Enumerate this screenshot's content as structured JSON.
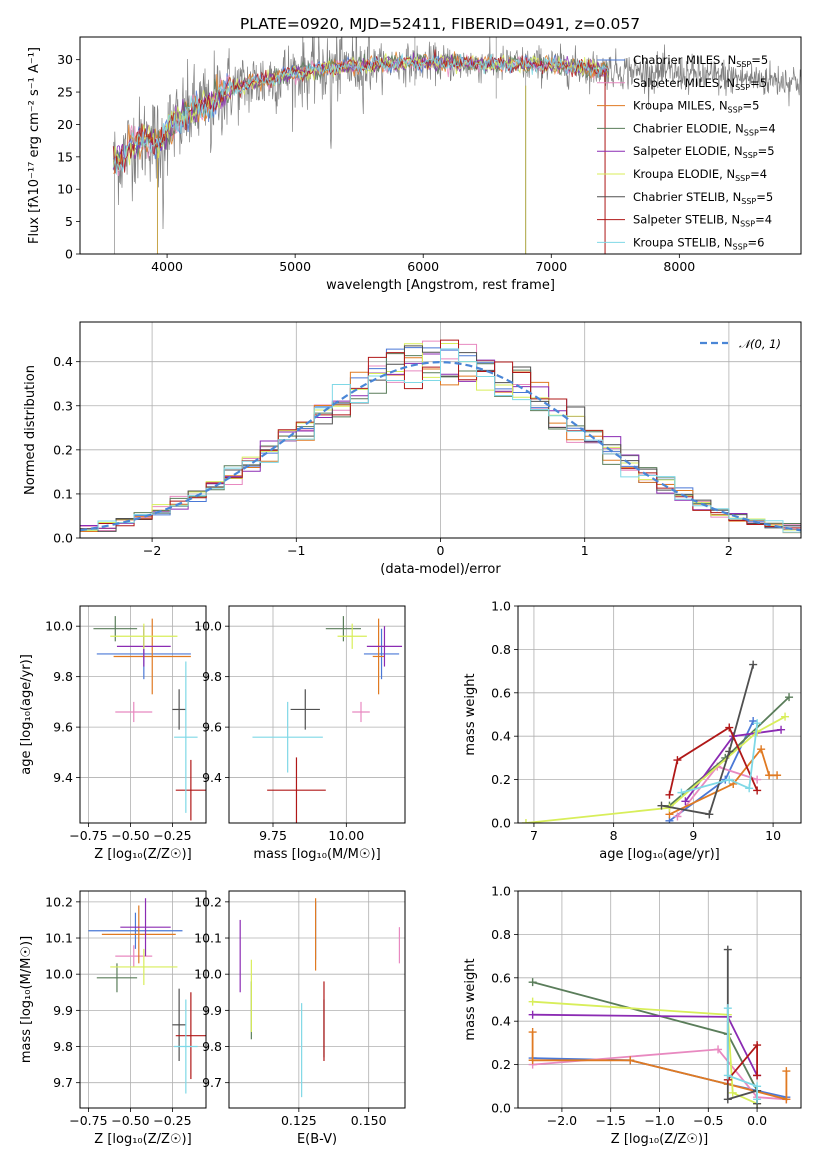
{
  "figure": {
    "title": "PLATE=0920, MJD=52411, FIBERID=0491, z=0.057"
  },
  "models": [
    {
      "name": "Chabrier MILES",
      "nssp": "5",
      "color": "#4a78d6"
    },
    {
      "name": "Salpeter MILES",
      "nssp": "5",
      "color": "#e889c0"
    },
    {
      "name": "Kroupa MILES",
      "nssp": "5",
      "color": "#e07a22"
    },
    {
      "name": "Chabrier ELODIE",
      "nssp": "4",
      "color": "#5a7d5a"
    },
    {
      "name": "Salpeter ELODIE",
      "nssp": "5",
      "color": "#8b2bb3"
    },
    {
      "name": "Kroupa ELODIE",
      "nssp": "4",
      "color": "#d8ee5a"
    },
    {
      "name": "Chabrier STELIB",
      "nssp": "5",
      "color": "#505050"
    },
    {
      "name": "Salpeter STELIB",
      "nssp": "4",
      "color": "#b01818"
    },
    {
      "name": "Kroupa STELIB",
      "nssp": "6",
      "color": "#7fd8e6"
    }
  ],
  "chart_data": [
    {
      "id": "spectrum",
      "type": "line",
      "title": "PLATE=0920, MJD=52411, FIBERID=0491, z=0.057",
      "xlabel": "wavelength [Angstrom, rest frame]",
      "ylabel": "Flux [fλ10⁻¹⁷ erg cm⁻² s⁻¹ A⁻¹]",
      "xlim": [
        3320,
        8950
      ],
      "ylim": [
        0,
        33.5
      ],
      "xticks": [
        4000,
        5000,
        6000,
        7000,
        8000
      ],
      "yticks": [
        0,
        5,
        10,
        15,
        20,
        25,
        30
      ],
      "x": [
        3580,
        3650,
        3720,
        3800,
        3880,
        3950,
        4000,
        4100,
        4200,
        4300,
        4400,
        4500,
        4600,
        4700,
        4800,
        4900,
        5000,
        5200,
        5400,
        5600,
        5800,
        6000,
        6200,
        6400,
        6600,
        6800,
        7000,
        7200,
        7400,
        7600,
        7800,
        8000,
        8200,
        8400,
        8600,
        8800
      ],
      "y": [
        14,
        15,
        17,
        17.5,
        18,
        17,
        19,
        21,
        22,
        23,
        24.5,
        25.5,
        26,
        26.5,
        27,
        27.5,
        28,
        28.5,
        29,
        29.2,
        29.4,
        29.5,
        29.5,
        29.3,
        29.2,
        29.3,
        29.2,
        28.8,
        28.5,
        28.3,
        28,
        27.8,
        27.5,
        27.3,
        27,
        26.8
      ],
      "legend_position": "right",
      "grid": false
    },
    {
      "id": "residuals",
      "type": "histogram",
      "xlabel": "(data-model)/error",
      "ylabel": "Normed distribution",
      "xlim": [
        -2.5,
        2.5
      ],
      "ylim": [
        0,
        0.49
      ],
      "xticks": [
        -2,
        -1,
        0,
        1,
        2
      ],
      "xtick_labels": [
        "−2",
        "−1",
        "0",
        "1",
        "2"
      ],
      "yticks": [
        0.0,
        0.1,
        0.2,
        0.3,
        0.4
      ],
      "yticks_labels": [
        "0.0",
        "0.1",
        "0.2",
        "0.3",
        "0.4"
      ],
      "bin_width": 0.125,
      "reference_label": "𝒩(0, 1)",
      "reference_color": "#4a86d6",
      "grid": true
    },
    {
      "id": "age-vs-Z",
      "type": "errorbar",
      "xlabel": "Z [log₁₀(Z/Z☉)]",
      "ylabel": "age  [log₁₀(age/yr)]",
      "xlim": [
        -0.8,
        -0.05
      ],
      "ylim": [
        9.22,
        10.08
      ],
      "xticks": [
        -0.75,
        -0.5,
        -0.25
      ],
      "xtick_labels": [
        "−0.75",
        "−0.50",
        "−0.25"
      ],
      "yticks": [
        9.4,
        9.6,
        9.8,
        10.0
      ],
      "yticks_labels": [
        "9.4",
        "9.6",
        "9.8",
        "10.0"
      ],
      "points": [
        {
          "x": -0.42,
          "y": 9.89,
          "xerr": 0.28,
          "yerr": 0.1
        },
        {
          "x": -0.48,
          "y": 9.66,
          "xerr": 0.11,
          "yerr": 0.04
        },
        {
          "x": -0.37,
          "y": 9.88,
          "xerr": 0.23,
          "yerr": 0.15
        },
        {
          "x": -0.59,
          "y": 9.99,
          "xerr": 0.13,
          "yerr": 0.05
        },
        {
          "x": -0.42,
          "y": 9.92,
          "xerr": 0.16,
          "yerr": 0.08
        },
        {
          "x": -0.42,
          "y": 9.96,
          "xerr": 0.2,
          "yerr": 0.05
        },
        {
          "x": -0.21,
          "y": 9.67,
          "xerr": 0.04,
          "yerr": 0.08
        },
        {
          "x": -0.14,
          "y": 9.35,
          "xerr": 0.09,
          "yerr": 0.12
        },
        {
          "x": -0.17,
          "y": 9.56,
          "xerr": 0.07,
          "yerr": 0.3
        }
      ],
      "grid": true
    },
    {
      "id": "age-vs-mass",
      "type": "errorbar",
      "xlabel": "mass [log₁₀(M/M☉)]",
      "ylabel": "",
      "xlim": [
        9.6,
        10.2
      ],
      "ylim": [
        9.22,
        10.08
      ],
      "xticks": [
        9.75,
        10.0
      ],
      "xtick_labels": [
        "9.75",
        "10.00"
      ],
      "yticks": [
        9.4,
        9.6,
        9.8,
        10.0
      ],
      "yticks_labels": [
        "9.4",
        "9.6",
        "9.8",
        "10.0"
      ],
      "points": [
        {
          "x": 10.12,
          "y": 9.89,
          "xerr": 0.06,
          "yerr": 0.1
        },
        {
          "x": 10.05,
          "y": 9.66,
          "xerr": 0.03,
          "yerr": 0.04
        },
        {
          "x": 10.11,
          "y": 9.88,
          "xerr": 0.02,
          "yerr": 0.15
        },
        {
          "x": 9.99,
          "y": 9.99,
          "xerr": 0.06,
          "yerr": 0.05
        },
        {
          "x": 10.13,
          "y": 9.92,
          "xerr": 0.06,
          "yerr": 0.08
        },
        {
          "x": 10.02,
          "y": 9.96,
          "xerr": 0.05,
          "yerr": 0.05
        },
        {
          "x": 9.86,
          "y": 9.67,
          "xerr": 0.05,
          "yerr": 0.08
        },
        {
          "x": 9.83,
          "y": 9.35,
          "xerr": 0.1,
          "yerr": 0.13
        },
        {
          "x": 9.8,
          "y": 9.56,
          "xerr": 0.12,
          "yerr": 0.14
        }
      ],
      "grid": true
    },
    {
      "id": "sfh-age",
      "type": "line",
      "xlabel": "age  [log₁₀(age/yr)]",
      "ylabel": "mass weight",
      "xlim": [
        6.8,
        10.35
      ],
      "ylim": [
        0,
        1
      ],
      "xticks": [
        7,
        8,
        9,
        10
      ],
      "yticks": [
        0.0,
        0.2,
        0.4,
        0.6,
        0.8,
        1.0
      ],
      "yticks_labels": [
        "0.0",
        "0.2",
        "0.4",
        "0.6",
        "0.8",
        "1.0"
      ],
      "series": [
        {
          "x": [
            8.7,
            9.4,
            9.75
          ],
          "y": [
            0.01,
            0.2,
            0.47
          ]
        },
        {
          "x": [
            8.8,
            9.3,
            9.8
          ],
          "y": [
            0.03,
            0.26,
            0.2
          ]
        },
        {
          "x": [
            8.7,
            9.5,
            9.85,
            9.95,
            10.05
          ],
          "y": [
            0.04,
            0.18,
            0.34,
            0.22,
            0.22
          ]
        },
        {
          "x": [
            8.7,
            9.4,
            10.2
          ],
          "y": [
            0.08,
            0.3,
            0.58
          ]
        },
        {
          "x": [
            8.9,
            9.5,
            10.1
          ],
          "y": [
            0.1,
            0.4,
            0.43
          ]
        },
        {
          "x": [
            6.9,
            8.7,
            9.8,
            10.15
          ],
          "y": [
            0.0,
            0.07,
            0.42,
            0.49
          ]
        },
        {
          "x": [
            8.6,
            9.2,
            9.45,
            9.75
          ],
          "y": [
            0.08,
            0.04,
            0.33,
            0.73
          ]
        },
        {
          "x": [
            8.7,
            8.8,
            9.45,
            9.8
          ],
          "y": [
            0.13,
            0.29,
            0.44,
            0.15
          ]
        },
        {
          "x": [
            8.85,
            9.45,
            9.7,
            9.8
          ],
          "y": [
            0.14,
            0.2,
            0.16,
            0.46
          ]
        }
      ],
      "grid": true
    },
    {
      "id": "mass-vs-Z",
      "type": "errorbar",
      "xlabel": "Z [log₁₀(Z/Z☉)]",
      "ylabel": "mass [log₁₀(M/M☉)]",
      "xlim": [
        -0.8,
        -0.05
      ],
      "ylim": [
        9.63,
        10.23
      ],
      "xticks": [
        -0.75,
        -0.5,
        -0.25
      ],
      "xtick_labels": [
        "−0.75",
        "−0.50",
        "−0.25"
      ],
      "yticks": [
        9.7,
        9.8,
        9.9,
        10.0,
        10.1,
        10.2
      ],
      "yticks_labels": [
        "9.7",
        "9.8",
        "9.9",
        "10.0",
        "10.1",
        "10.2"
      ],
      "points": [
        {
          "x": -0.47,
          "y": 10.12,
          "xerr": 0.28,
          "yerr": 0.05
        },
        {
          "x": -0.48,
          "y": 10.05,
          "xerr": 0.11,
          "yerr": 0.03
        },
        {
          "x": -0.45,
          "y": 10.11,
          "xerr": 0.22,
          "yerr": 0.08
        },
        {
          "x": -0.58,
          "y": 9.99,
          "xerr": 0.12,
          "yerr": 0.04
        },
        {
          "x": -0.41,
          "y": 10.13,
          "xerr": 0.15,
          "yerr": 0.08
        },
        {
          "x": -0.42,
          "y": 10.02,
          "xerr": 0.2,
          "yerr": 0.05
        },
        {
          "x": -0.21,
          "y": 9.86,
          "xerr": 0.04,
          "yerr": 0.1
        },
        {
          "x": -0.14,
          "y": 9.83,
          "xerr": 0.09,
          "yerr": 0.12
        },
        {
          "x": -0.17,
          "y": 9.8,
          "xerr": 0.07,
          "yerr": 0.13
        }
      ],
      "grid": true
    },
    {
      "id": "mass-vs-ebv",
      "type": "errorbar",
      "xlabel": "E(B-V)",
      "ylabel": "",
      "xlim": [
        0.1,
        0.163
      ],
      "ylim": [
        9.63,
        10.23
      ],
      "xticks": [
        0.125,
        0.15
      ],
      "xtick_labels": [
        "0.125",
        "0.150"
      ],
      "yticks": [
        9.7,
        9.8,
        9.9,
        10.0,
        10.1,
        10.2
      ],
      "yticks_labels": [
        "9.7",
        "9.8",
        "9.9",
        "10.0",
        "10.1",
        "10.2"
      ],
      "points": [
        {
          "x": 0.131,
          "y": 10.12,
          "xerr": 0,
          "yerr": 0.08
        },
        {
          "x": 0.161,
          "y": 10.08,
          "xerr": 0,
          "yerr": 0.05
        },
        {
          "x": 0.131,
          "y": 10.11,
          "xerr": 0,
          "yerr": 0.1
        },
        {
          "x": 0.108,
          "y": 9.9,
          "xerr": 0,
          "yerr": 0.08
        },
        {
          "x": 0.104,
          "y": 10.05,
          "xerr": 0,
          "yerr": 0.1
        },
        {
          "x": 0.108,
          "y": 9.94,
          "xerr": 0,
          "yerr": 0.1
        },
        {
          "x": 0.134,
          "y": 9.85,
          "xerr": 0,
          "yerr": 0.08
        },
        {
          "x": 0.134,
          "y": 9.87,
          "xerr": 0,
          "yerr": 0.11
        },
        {
          "x": 0.126,
          "y": 9.79,
          "xerr": 0,
          "yerr": 0.13
        }
      ],
      "grid": true
    },
    {
      "id": "sfh-Z",
      "type": "line",
      "xlabel": "Z [log₁₀(Z/Z☉)]",
      "ylabel": "mass weight",
      "xlim": [
        -2.45,
        0.45
      ],
      "ylim": [
        0,
        1
      ],
      "xticks": [
        -2.0,
        -1.5,
        -1.0,
        -0.5,
        0.0
      ],
      "xtick_labels": [
        "−2.0",
        "−1.5",
        "−1.0",
        "−0.5",
        "0.0"
      ],
      "yticks": [
        0.0,
        0.2,
        0.4,
        0.6,
        0.8,
        1.0
      ],
      "yticks_labels": [
        "0.0",
        "0.2",
        "0.4",
        "0.6",
        "0.8",
        "1.0"
      ],
      "series": [
        {
          "x": [
            -2.3,
            -1.3,
            -0.3,
            0.3
          ],
          "y": [
            0.23,
            0.22,
            0.11,
            0.05
          ]
        },
        {
          "x": [
            -2.3,
            -0.4,
            0.0,
            0.3
          ],
          "y": [
            0.2,
            0.27,
            0.05,
            0.04
          ]
        },
        {
          "x": [
            -2.3,
            -2.3,
            -1.3,
            -0.3,
            0.3,
            0.3
          ],
          "y": [
            0.35,
            0.22,
            0.22,
            0.11,
            0.04,
            0.17
          ]
        },
        {
          "x": [
            -2.3,
            -0.3,
            0.0
          ],
          "y": [
            0.58,
            0.34,
            0.08
          ]
        },
        {
          "x": [
            -2.3,
            -0.3,
            0.0
          ],
          "y": [
            0.43,
            0.42,
            0.15
          ]
        },
        {
          "x": [
            -2.3,
            -0.3,
            -0.25,
            0.0
          ],
          "y": [
            0.49,
            0.43,
            0.07,
            0.02
          ]
        },
        {
          "x": [
            -0.3,
            -0.3,
            0.0,
            0.0
          ],
          "y": [
            0.73,
            0.04,
            0.08,
            0.02
          ]
        },
        {
          "x": [
            -0.3,
            0.0,
            0.0
          ],
          "y": [
            0.13,
            0.29,
            0.15
          ]
        },
        {
          "x": [
            -0.3,
            -0.3,
            0.0,
            0.0
          ],
          "y": [
            0.46,
            0.15,
            0.1,
            0.04
          ]
        }
      ],
      "grid": true
    }
  ]
}
